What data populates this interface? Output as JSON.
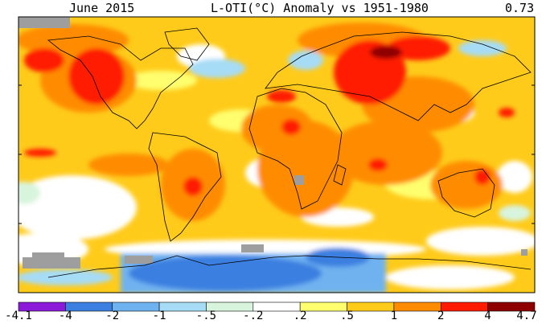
{
  "header": {
    "period": "June 2015",
    "title": "L-OTI(°C) Anomaly vs 1951-1980",
    "global_mean": "0.73"
  },
  "legend": {
    "bins": [
      {
        "label": "-4.1",
        "color": "#8b1ad9"
      },
      {
        "label": "-4",
        "color": "#3b7fe0"
      },
      {
        "label": "-2",
        "color": "#6fb2f0"
      },
      {
        "label": "-1",
        "color": "#a6dcf6"
      },
      {
        "label": "-.5",
        "color": "#d8f4dc"
      },
      {
        "label": "-.2",
        "color": "#ffffff"
      },
      {
        "label": ".2",
        "color": "#fffe6e"
      },
      {
        "label": ".5",
        "color": "#ffcb1a"
      },
      {
        "label": "1",
        "color": "#ff8c00"
      },
      {
        "label": "2",
        "color": "#ff1a00"
      },
      {
        "label": "4",
        "color": "#8e0000"
      }
    ],
    "max_label": "4.7",
    "missing_color": "#9e9e9e"
  }
}
